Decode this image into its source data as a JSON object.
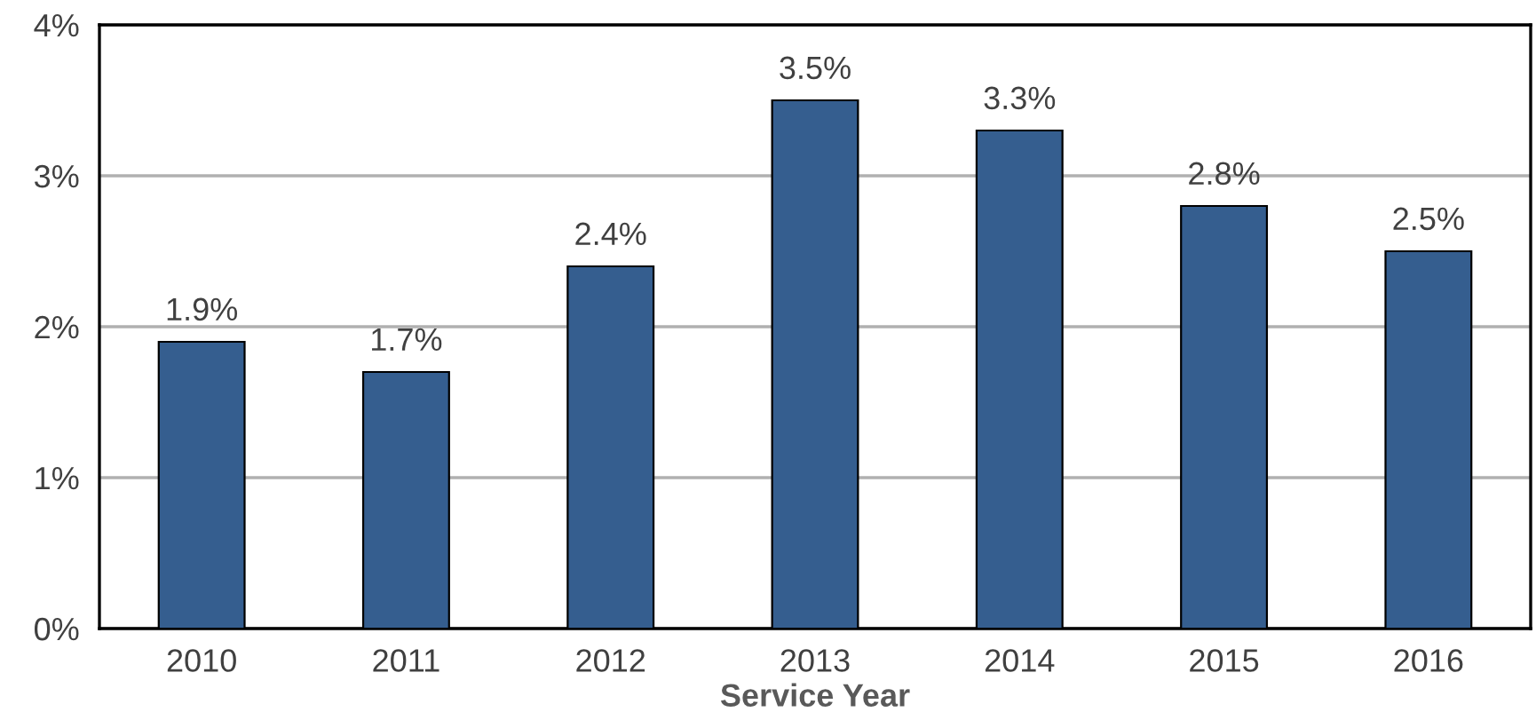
{
  "chart_data": {
    "type": "bar",
    "xlabel": "Service Year",
    "categories": [
      "2010",
      "2011",
      "2012",
      "2013",
      "2014",
      "2015",
      "2016"
    ],
    "series": [
      {
        "color": "#355e8f",
        "values": [
          1.9,
          1.7,
          2.4,
          3.5,
          3.3,
          2.8,
          2.5
        ],
        "value_labels": [
          "1.9%",
          "1.7%",
          "2.4%",
          "3.5%",
          "3.3%",
          "2.8%",
          "2.5%"
        ]
      }
    ],
    "ylim": [
      0,
      4
    ],
    "yticks": [
      {
        "value": 0,
        "label": "0%"
      },
      {
        "value": 1,
        "label": "1%"
      },
      {
        "value": 2,
        "label": "2%"
      },
      {
        "value": 3,
        "label": "3%"
      },
      {
        "value": 4,
        "label": "4%"
      }
    ],
    "grid": "y"
  }
}
